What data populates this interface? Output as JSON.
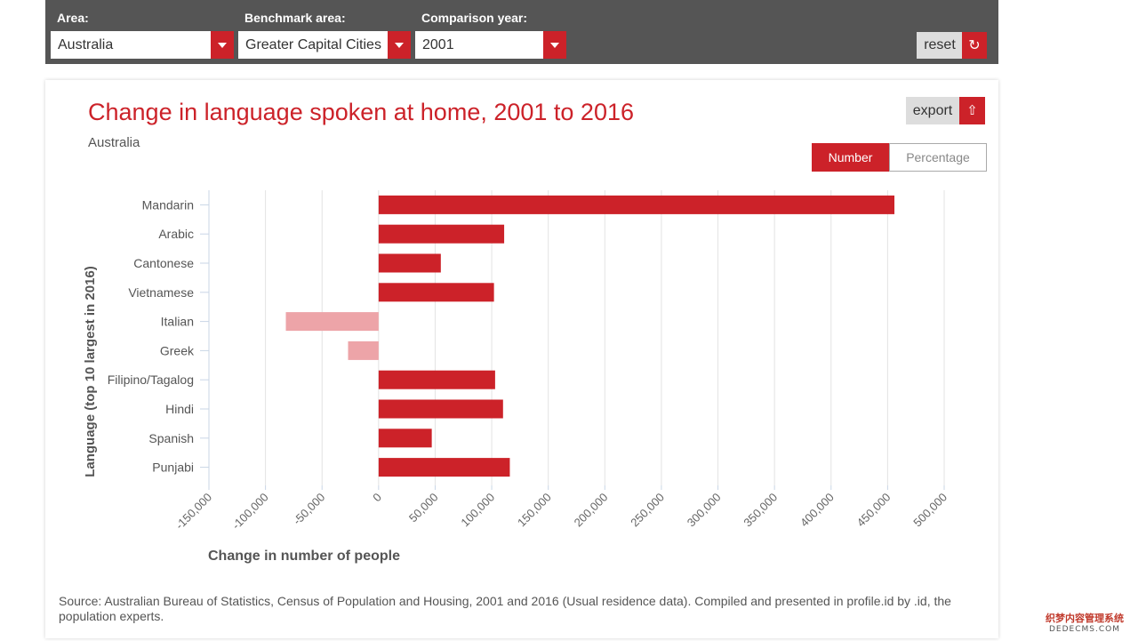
{
  "controls": {
    "area": {
      "label": "Area:",
      "value": "Australia"
    },
    "benchmark": {
      "label": "Benchmark area:",
      "value": "Greater Capital Cities"
    },
    "comparison": {
      "label": "Comparison year:",
      "value": "2001"
    },
    "reset_label": "reset",
    "reset_icon": "↻"
  },
  "card": {
    "export_label": "export",
    "export_icon": "⇧",
    "toggle": {
      "number": "Number",
      "percentage": "Percentage",
      "active": "Number"
    }
  },
  "chart_data": {
    "type": "bar",
    "orientation": "horizontal",
    "title": "Change in language spoken at home, 2001 to 2016",
    "subtitle": "Australia",
    "xlabel": "Change in number of people",
    "ylabel": "Language (top 10 largest in 2016)",
    "xlim": [
      -150000,
      500000
    ],
    "xticks": [
      -150000,
      -100000,
      -50000,
      0,
      50000,
      100000,
      150000,
      200000,
      250000,
      300000,
      350000,
      400000,
      450000,
      500000
    ],
    "xtick_labels": [
      "-150,000",
      "-100,000",
      "-50,000",
      "0",
      "50,000",
      "100,000",
      "150,000",
      "200,000",
      "250,000",
      "300,000",
      "350,000",
      "400,000",
      "450,000",
      "500,000"
    ],
    "categories": [
      "Mandarin",
      "Arabic",
      "Cantonese",
      "Vietnamese",
      "Italian",
      "Greek",
      "Filipino/Tagalog",
      "Hindi",
      "Spanish",
      "Punjabi"
    ],
    "values": [
      456000,
      111000,
      55000,
      102000,
      -82000,
      -27000,
      103000,
      110000,
      47000,
      116000
    ],
    "grid": "vertical",
    "colors": {
      "positive": "#cc2229",
      "negative": "#eda4a8"
    }
  },
  "source": "Source: Australian Bureau of Statistics, Census of Population and Housing, 2001 and 2016 (Usual residence data). Compiled and presented in profile.id by .id, the population experts.",
  "watermark": {
    "line1": "织梦内容管理系统",
    "line2": "DEDECMS.COM"
  }
}
